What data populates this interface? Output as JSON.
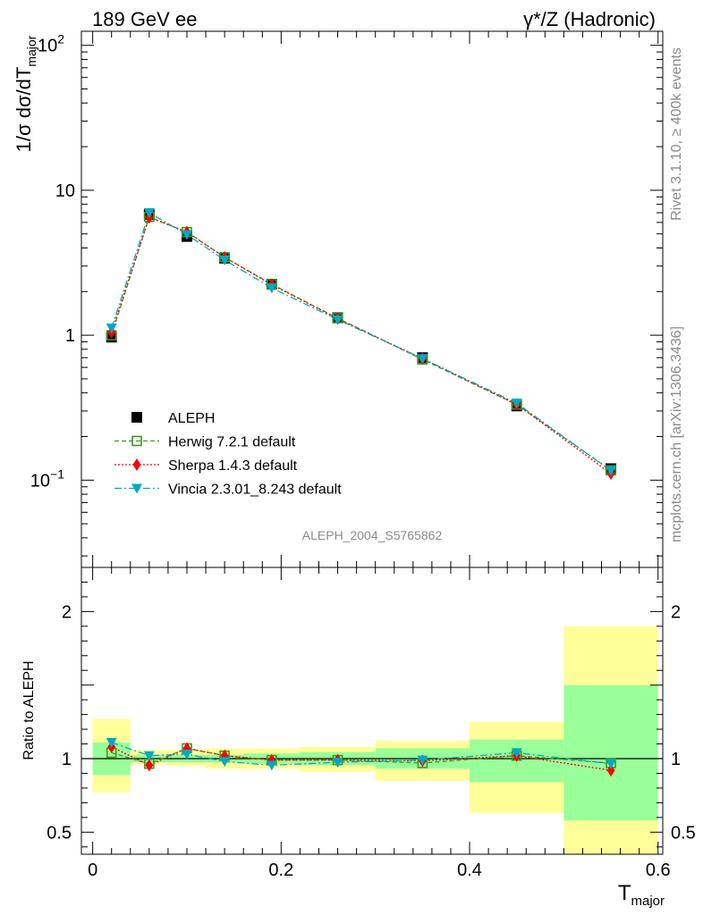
{
  "header": {
    "left": "189 GeV ee",
    "right": "γ*/Z (Hadronic)"
  },
  "side_text": {
    "rivet": "Rivet 3.1.10, ≥ 400k events",
    "mcplots": "mcplots.cern.ch [arXiv:1306.3436]"
  },
  "watermark": "ALEPH_2004_S5765862",
  "chart_data": {
    "type": "scatter",
    "main": {
      "ylabel_main": "1/σ  dσ/dT",
      "ylabel_sub": "major",
      "yscale": "log",
      "ylim": [
        0.025,
        125
      ],
      "y_ticks": [
        {
          "v": 100,
          "base": "10",
          "exp": "2"
        },
        {
          "v": 10,
          "base": "10",
          "exp": ""
        },
        {
          "v": 1,
          "base": "1",
          "exp": ""
        },
        {
          "v": 0.1,
          "base": "10",
          "exp": "−1"
        }
      ]
    },
    "ratio": {
      "ylabel": "Ratio to ALEPH",
      "ylim": [
        0.35,
        2.3
      ],
      "y_ticks": [
        {
          "v": 2,
          "label": "2"
        },
        {
          "v": 1,
          "label": "1"
        },
        {
          "v": 0.5,
          "label": "0.5"
        }
      ]
    },
    "xlabel_main": "T",
    "xlabel_sub": "major",
    "xlim": [
      -0.012,
      0.605
    ],
    "x_ticks": [
      {
        "v": 0,
        "label": "0"
      },
      {
        "v": 0.2,
        "label": "0.2"
      },
      {
        "v": 0.4,
        "label": "0.4"
      },
      {
        "v": 0.6,
        "label": "0.6"
      }
    ],
    "bins": [
      {
        "lo": 0.0,
        "hi": 0.04,
        "x": 0.02,
        "data": 0.97,
        "band_in": [
          0.89,
          1.11
        ],
        "band_out": [
          0.77,
          1.27
        ]
      },
      {
        "lo": 0.04,
        "hi": 0.08,
        "x": 0.06,
        "data": 6.8,
        "band_in": [
          0.975,
          1.025
        ],
        "band_out": [
          0.96,
          1.06
        ]
      },
      {
        "lo": 0.08,
        "hi": 0.12,
        "x": 0.1,
        "data": 4.8,
        "band_in": [
          0.975,
          1.025
        ],
        "band_out": [
          0.95,
          1.06
        ]
      },
      {
        "lo": 0.12,
        "hi": 0.16,
        "x": 0.14,
        "data": 3.4,
        "band_in": [
          0.975,
          1.025
        ],
        "band_out": [
          0.93,
          1.07
        ]
      },
      {
        "lo": 0.16,
        "hi": 0.22,
        "x": 0.19,
        "data": 2.25,
        "band_in": [
          0.965,
          1.035
        ],
        "band_out": [
          0.93,
          1.07
        ]
      },
      {
        "lo": 0.22,
        "hi": 0.3,
        "x": 0.26,
        "data": 1.32,
        "band_in": [
          0.955,
          1.045
        ],
        "band_out": [
          0.91,
          1.08
        ]
      },
      {
        "lo": 0.3,
        "hi": 0.4,
        "x": 0.35,
        "data": 0.7,
        "band_in": [
          0.93,
          1.07
        ],
        "band_out": [
          0.85,
          1.12
        ]
      },
      {
        "lo": 0.4,
        "hi": 0.5,
        "x": 0.45,
        "data": 0.325,
        "band_in": [
          0.84,
          1.13
        ],
        "band_out": [
          0.63,
          1.25
        ]
      },
      {
        "lo": 0.5,
        "hi": 0.6,
        "x": 0.55,
        "data": 0.12,
        "band_in": [
          0.58,
          1.5
        ],
        "band_out": [
          0.35,
          1.9
        ]
      }
    ],
    "series": [
      {
        "name": "ALEPH",
        "marker": "square-filled",
        "color": "#000000",
        "values": [
          0.97,
          6.8,
          4.8,
          3.4,
          2.25,
          1.32,
          0.7,
          0.325,
          0.12
        ]
      },
      {
        "name": "Herwig 7.2.1 default",
        "marker": "square-open",
        "color": "#3c9a1e",
        "values": [
          1.0,
          6.55,
          5.15,
          3.45,
          2.25,
          1.31,
          0.68,
          0.332,
          0.117
        ],
        "ratio": [
          1.04,
          0.965,
          1.07,
          1.02,
          0.99,
          0.99,
          0.97,
          1.02,
          0.97
        ]
      },
      {
        "name": "Sherpa 1.4.3 default",
        "marker": "diamond",
        "color": "#ff0000",
        "values": [
          1.05,
          6.5,
          5.15,
          3.45,
          2.23,
          1.3,
          0.69,
          0.333,
          0.111
        ],
        "ratio": [
          1.08,
          0.955,
          1.07,
          1.02,
          0.99,
          0.99,
          0.985,
          1.02,
          0.92
        ]
      },
      {
        "name": "Vincia 2.3.01_8.243 default",
        "marker": "triangle-down",
        "color": "#00a8c8",
        "values": [
          1.12,
          7.0,
          4.95,
          3.3,
          2.12,
          1.28,
          0.69,
          0.34,
          0.116
        ],
        "ratio": [
          1.11,
          1.02,
          1.03,
          0.98,
          0.955,
          0.975,
          0.99,
          1.04,
          0.965
        ]
      }
    ],
    "band_colors": {
      "inner": "#99ff99",
      "outer": "#ffff99"
    }
  }
}
